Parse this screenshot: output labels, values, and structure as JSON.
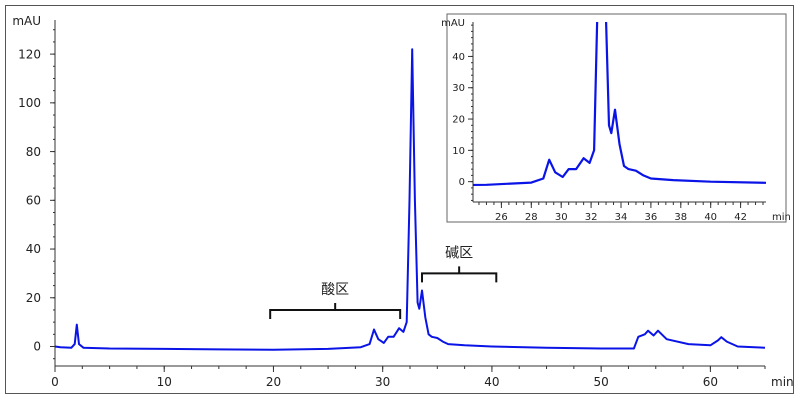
{
  "chart_data": [
    {
      "type": "line",
      "name": "main",
      "xlabel": "min",
      "ylabel": "mAU",
      "xlim": [
        0,
        65
      ],
      "ylim": [
        -8,
        134
      ],
      "xticks": [
        0,
        10,
        20,
        30,
        40,
        50,
        60
      ],
      "yticks": [
        0,
        20,
        40,
        60,
        80,
        100,
        120
      ],
      "grid": false,
      "series_color": "#0a14e6",
      "points": [
        [
          0,
          0
        ],
        [
          0.5,
          -0.3
        ],
        [
          1.5,
          -0.5
        ],
        [
          1.8,
          1
        ],
        [
          2.0,
          9
        ],
        [
          2.2,
          1
        ],
        [
          2.6,
          -0.5
        ],
        [
          5,
          -0.8
        ],
        [
          10,
          -1
        ],
        [
          15,
          -1.2
        ],
        [
          20,
          -1.3
        ],
        [
          25,
          -1
        ],
        [
          28,
          -0.3
        ],
        [
          28.8,
          1
        ],
        [
          29.2,
          7
        ],
        [
          29.6,
          3
        ],
        [
          30.1,
          1.5
        ],
        [
          30.5,
          4
        ],
        [
          31,
          4
        ],
        [
          31.5,
          7.5
        ],
        [
          31.9,
          6
        ],
        [
          32.2,
          10
        ],
        [
          32.45,
          60
        ],
        [
          32.7,
          122
        ],
        [
          32.95,
          60
        ],
        [
          33.2,
          18
        ],
        [
          33.35,
          15.5
        ],
        [
          33.6,
          23
        ],
        [
          33.9,
          12
        ],
        [
          34.2,
          5
        ],
        [
          34.5,
          4
        ],
        [
          35,
          3.5
        ],
        [
          35.5,
          2
        ],
        [
          36,
          1
        ],
        [
          37.5,
          0.5
        ],
        [
          40,
          0
        ],
        [
          45,
          -0.5
        ],
        [
          50,
          -0.8
        ],
        [
          53,
          -0.8
        ],
        [
          53.4,
          4
        ],
        [
          54,
          5
        ],
        [
          54.3,
          6.5
        ],
        [
          54.8,
          4.5
        ],
        [
          55.2,
          6.5
        ],
        [
          56,
          3
        ],
        [
          58,
          1
        ],
        [
          60,
          0.5
        ],
        [
          60.7,
          2.5
        ],
        [
          61,
          3.8
        ],
        [
          61.5,
          2
        ],
        [
          62.5,
          0
        ],
        [
          65,
          -0.5
        ]
      ],
      "annotations": [
        {
          "label": "酸区",
          "x_range": [
            19.7,
            31.6
          ],
          "y": 15
        },
        {
          "label": "碱区",
          "x_range": [
            33.6,
            40.4
          ],
          "y": 30
        }
      ]
    },
    {
      "type": "line",
      "name": "inset",
      "xlabel": "min",
      "ylabel": "mAU",
      "xlim": [
        24.1,
        43.7
      ],
      "ylim": [
        -6.5,
        51
      ],
      "xticks": [
        26,
        28,
        30,
        32,
        34,
        36,
        38,
        40,
        42
      ],
      "yticks": [
        0,
        10,
        20,
        30,
        40
      ],
      "grid": false,
      "series_color": "#0a14e6",
      "points_source": "main"
    }
  ]
}
